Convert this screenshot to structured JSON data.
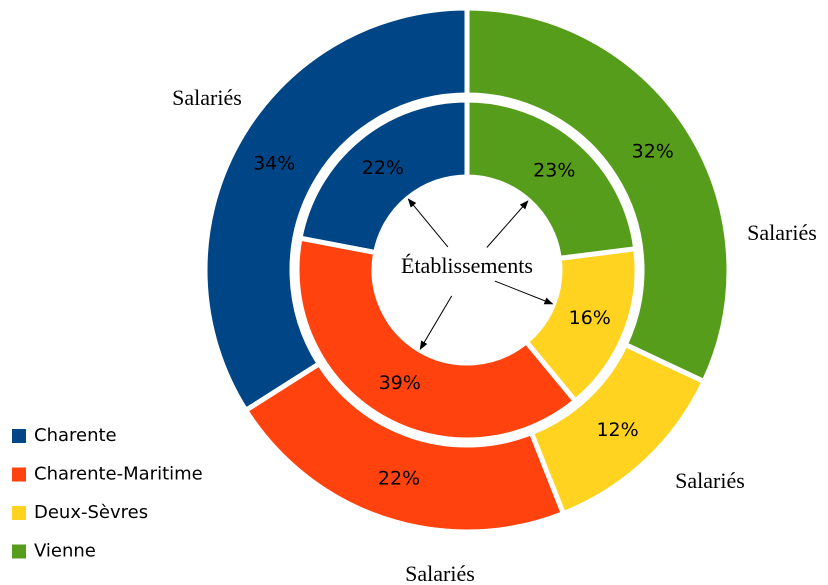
{
  "chart_data": {
    "type": "double-donut",
    "categories": [
      "Charente",
      "Charente-Maritime",
      "Deux-Sèvres",
      "Vienne"
    ],
    "colors": [
      "#004586",
      "#ff420e",
      "#ffd320",
      "#579d1c"
    ],
    "rings": [
      {
        "name": "Établissements",
        "values": [
          22,
          39,
          16,
          23
        ],
        "value_labels": [
          "22%",
          "39%",
          "16%",
          "23%"
        ]
      },
      {
        "name": "Salariés",
        "values": [
          34,
          22,
          12,
          32
        ],
        "value_labels": [
          "34%",
          "22%",
          "12%",
          "32%"
        ]
      }
    ],
    "legend": "bottom-left"
  }
}
